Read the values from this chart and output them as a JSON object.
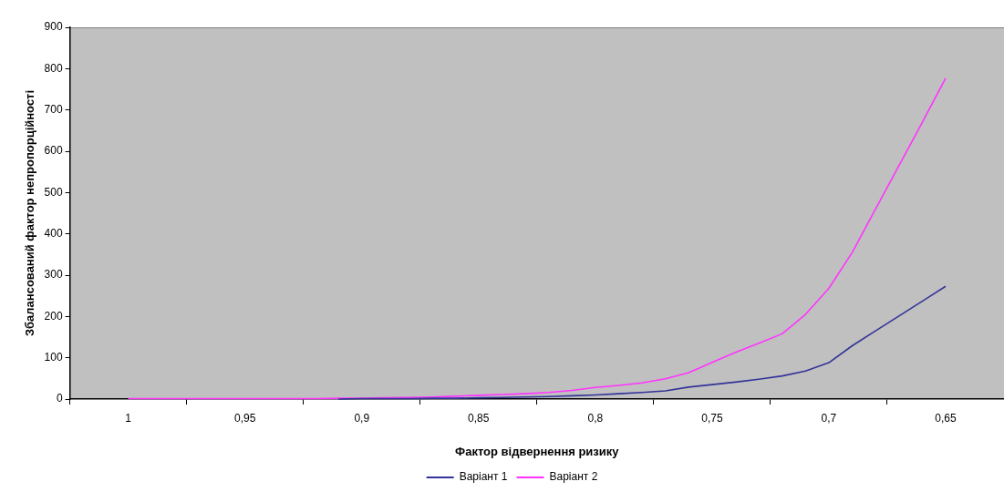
{
  "chart_data": {
    "type": "line",
    "xlabel": "Фактор відвернення ризику",
    "ylabel": "Збалансований фактор непропорційності",
    "x": [
      1,
      0.99,
      0.98,
      0.97,
      0.96,
      0.95,
      0.94,
      0.93,
      0.92,
      0.91,
      0.9,
      0.89,
      0.88,
      0.87,
      0.86,
      0.85,
      0.84,
      0.83,
      0.82,
      0.81,
      0.8,
      0.79,
      0.78,
      0.77,
      0.76,
      0.75,
      0.74,
      0.73,
      0.72,
      0.71,
      0.7,
      0.69,
      0.68,
      0.67,
      0.66,
      0.65
    ],
    "series": [
      {
        "name": "Варіант 1",
        "color": "#333399",
        "values": [
          null,
          null,
          null,
          null,
          null,
          null,
          null,
          null,
          null,
          0,
          1,
          1,
          1,
          2,
          2,
          3,
          4,
          5,
          6,
          8,
          10,
          13,
          16,
          20,
          29,
          35,
          41,
          48,
          56,
          68,
          88,
          129,
          165,
          201,
          237,
          273
        ]
      },
      {
        "name": "Варіант 2",
        "color": "#ff33ff",
        "values": [
          1,
          1,
          1,
          1,
          1,
          1,
          1,
          1,
          1,
          2,
          2,
          3,
          4,
          5,
          7,
          9,
          11,
          13,
          16,
          21,
          28,
          33,
          39,
          49,
          64,
          89,
          113,
          135,
          158,
          205,
          268,
          355,
          460,
          565,
          670,
          777
        ]
      }
    ],
    "xlim": [
      1.025,
      0.625
    ],
    "xticks": [
      {
        "value": 1.025,
        "label": null
      },
      {
        "value": 1,
        "label": "1"
      },
      {
        "value": 0.975,
        "label": null
      },
      {
        "value": 0.95,
        "label": "0,95"
      },
      {
        "value": 0.925,
        "label": null
      },
      {
        "value": 0.9,
        "label": "0,9"
      },
      {
        "value": 0.875,
        "label": null
      },
      {
        "value": 0.85,
        "label": "0,85"
      },
      {
        "value": 0.825,
        "label": null
      },
      {
        "value": 0.8,
        "label": "0,8"
      },
      {
        "value": 0.775,
        "label": null
      },
      {
        "value": 0.75,
        "label": "0,75"
      },
      {
        "value": 0.725,
        "label": null
      },
      {
        "value": 0.7,
        "label": "0,7"
      },
      {
        "value": 0.675,
        "label": null
      },
      {
        "value": 0.65,
        "label": "0,65"
      }
    ],
    "ylim": [
      0,
      900
    ],
    "yticks": [
      0,
      100,
      200,
      300,
      400,
      500,
      600,
      700,
      800,
      900
    ],
    "grid": false,
    "legend": "bottom",
    "marker": "none",
    "line_style": "solid"
  }
}
